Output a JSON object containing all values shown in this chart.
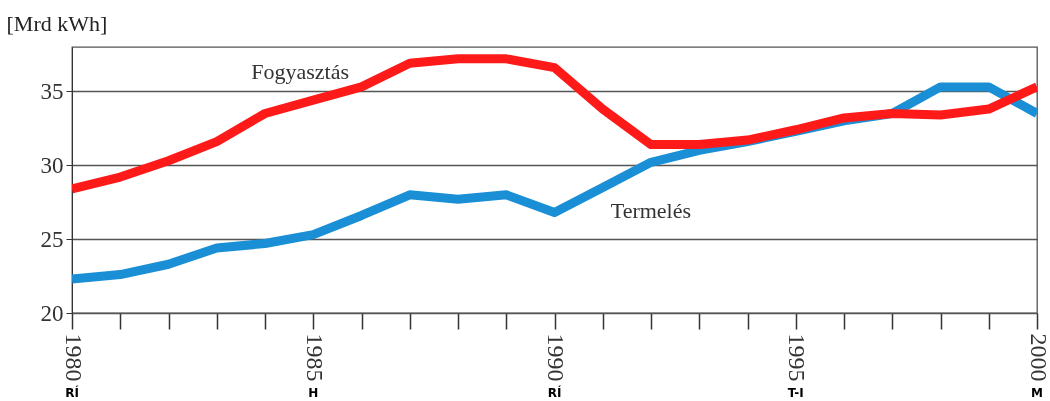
{
  "chart_data": {
    "type": "line",
    "ylabel": "[Mrd kWh]",
    "x": [
      1980,
      1981,
      1982,
      1983,
      1984,
      1985,
      1986,
      1987,
      1988,
      1989,
      1990,
      1991,
      1992,
      1993,
      1994,
      1995,
      1996,
      1997,
      1998,
      1999,
      2000
    ],
    "series": [
      {
        "name": "Termelés",
        "color": "#1a8fd6",
        "values": [
          22.3,
          22.6,
          23.3,
          24.4,
          24.7,
          25.3,
          26.6,
          28.0,
          27.7,
          28.0,
          26.8,
          28.5,
          30.2,
          31.0,
          31.6,
          32.3,
          33.0,
          33.5,
          35.3,
          35.3,
          33.5
        ]
      },
      {
        "name": "Fogyasztás",
        "color": "#ff1a1a",
        "values": [
          28.4,
          29.2,
          30.3,
          31.6,
          33.5,
          34.4,
          35.3,
          36.9,
          37.2,
          37.2,
          36.6,
          33.8,
          31.4,
          31.4,
          31.7,
          32.4,
          33.2,
          33.5,
          33.4,
          33.8,
          35.3
        ]
      }
    ],
    "xlim": [
      1980,
      2000
    ],
    "xticks": [
      1980,
      {
        "value": 1981,
        "label": null
      },
      {
        "value": 1982,
        "label": null
      },
      {
        "value": 1983,
        "label": null
      },
      {
        "value": 1984,
        "label": null
      },
      1985,
      {
        "value": 1986,
        "label": null
      },
      {
        "value": 1987,
        "label": null
      },
      {
        "value": 1988,
        "label": null
      },
      {
        "value": 1989,
        "label": null
      },
      1990,
      {
        "value": 1991,
        "label": null
      },
      {
        "value": 1992,
        "label": null
      },
      {
        "value": 1993,
        "label": null
      },
      {
        "value": 1994,
        "label": null
      },
      1995,
      {
        "value": 1996,
        "label": null
      },
      {
        "value": 1997,
        "label": null
      },
      {
        "value": 1998,
        "label": null
      },
      {
        "value": 1999,
        "label": null
      },
      2000
    ],
    "ylim": [
      20,
      38
    ],
    "yticks": [
      20,
      25,
      30,
      35
    ],
    "grid": "y",
    "marker": "none",
    "line_style": "solid",
    "annotations": [
      "RÍ",
      "H",
      "RÍ",
      "T-I",
      "M"
    ]
  }
}
